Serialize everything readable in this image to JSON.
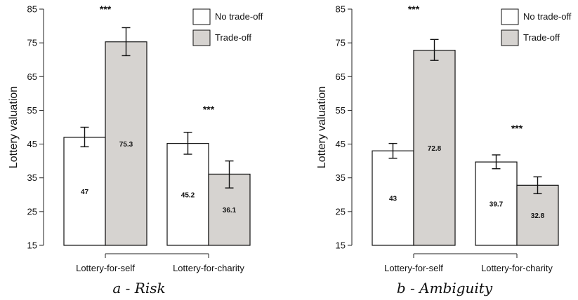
{
  "chart_data": [
    {
      "type": "bar",
      "caption": "a - Risk",
      "ylabel": "Lottery valuation",
      "ylim": [
        15,
        85
      ],
      "yticks": [
        15,
        25,
        35,
        45,
        55,
        65,
        75,
        85
      ],
      "categories": [
        "Lottery-for-self",
        "Lottery-for-charity"
      ],
      "series": [
        {
          "name": "No trade-off",
          "color": "#ffffff",
          "values": [
            47,
            45.2
          ],
          "err_low": [
            44.2,
            42.0
          ],
          "err_high": [
            50.0,
            48.5
          ],
          "labels": [
            "47",
            "45.2"
          ]
        },
        {
          "name": "Trade-off",
          "color": "#d6d3d0",
          "values": [
            75.3,
            36.1
          ],
          "err_low": [
            71.2,
            32.0
          ],
          "err_high": [
            79.5,
            40.0
          ],
          "labels": [
            "75.3",
            "36.1"
          ]
        }
      ],
      "significance": [
        "***",
        "***"
      ],
      "legend": "top-right",
      "grid": false
    },
    {
      "type": "bar",
      "caption": "b - Ambiguity",
      "ylabel": "Lottery valuation",
      "ylim": [
        15,
        85
      ],
      "yticks": [
        15,
        25,
        35,
        45,
        55,
        65,
        75,
        85
      ],
      "categories": [
        "Lottery-for-self",
        "Lottery-for-charity"
      ],
      "series": [
        {
          "name": "No trade-off",
          "color": "#ffffff",
          "values": [
            43,
            39.7
          ],
          "err_low": [
            40.8,
            37.7
          ],
          "err_high": [
            45.2,
            41.8
          ],
          "labels": [
            "43",
            "39.7"
          ]
        },
        {
          "name": "Trade-off",
          "color": "#d6d3d0",
          "values": [
            72.8,
            32.8
          ],
          "err_low": [
            69.8,
            30.3
          ],
          "err_high": [
            76.0,
            35.3
          ],
          "labels": [
            "72.8",
            "32.8"
          ]
        }
      ],
      "significance": [
        "***",
        "***"
      ],
      "legend": "top-right",
      "grid": false
    }
  ]
}
